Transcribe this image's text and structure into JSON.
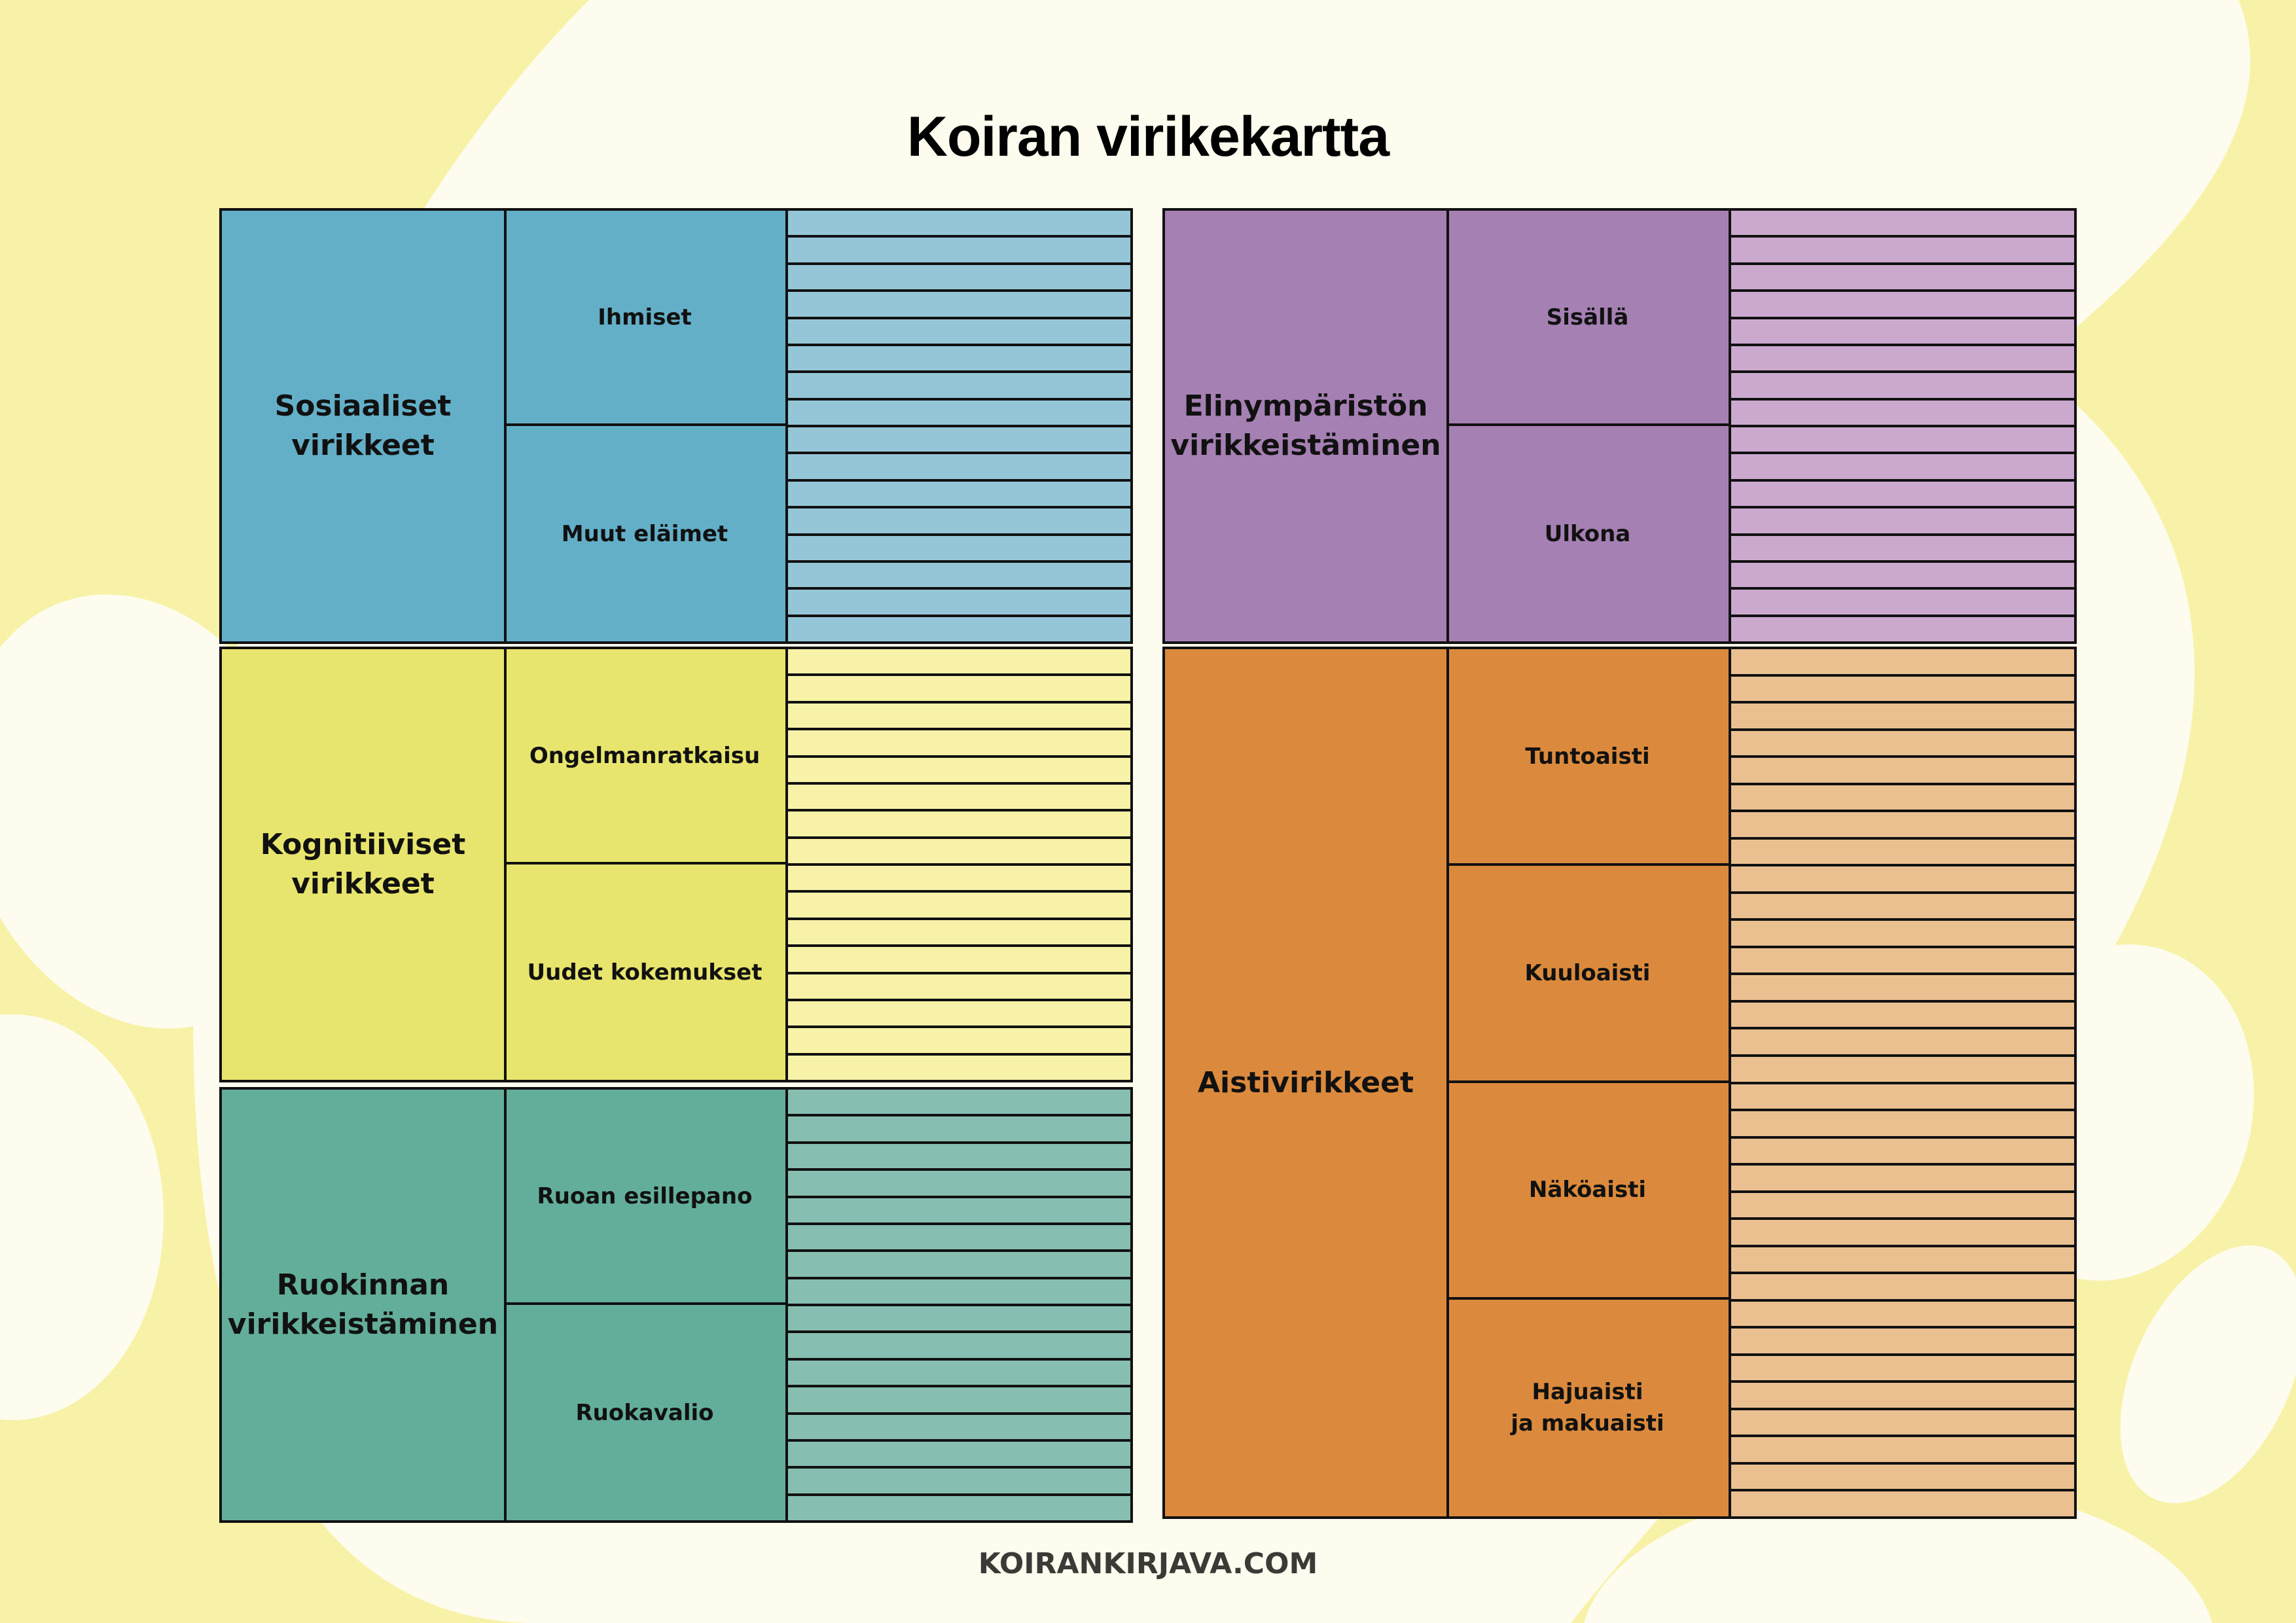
{
  "title": "Koiran virikekartta",
  "footer": "KOIRANKIRJAVA.COM",
  "colors": {
    "background_yellow": "#f8f2a8",
    "background_cream": "#fefcee",
    "outline": "#111111"
  },
  "categories": [
    {
      "label": "Sosiaaliset\nvirikkeet",
      "color": "#64afc8",
      "stripe_color": "#95c6d8",
      "subcategories": [
        "Ihmiset",
        "Muut eläimet"
      ],
      "rows": 16
    },
    {
      "label": "Kognitiiviset\nvirikkeet",
      "color": "#e8e56e",
      "stripe_color": "#f8f2a8",
      "subcategories": [
        "Ongelmanratkaisu",
        "Uudet kokemukset"
      ],
      "rows": 16
    },
    {
      "label": "Ruokinnan\nvirikkeistäminen",
      "color": "#63ae9a",
      "stripe_color": "#86bfb2",
      "subcategories": [
        "Ruoan esillepano",
        "Ruokavalio"
      ],
      "rows": 16
    },
    {
      "label": "Elinympäristön\nvirikkeistäminen",
      "color": "#a580b3",
      "stripe_color": "#cba9cf",
      "subcategories": [
        "Sisällä",
        "Ulkona"
      ],
      "rows": 16
    },
    {
      "label": "Aistivirikkeet",
      "color": "#db8a3d",
      "stripe_color": "#ebc091",
      "subcategories": [
        "Tuntoaisti",
        "Kuuloaisti",
        "Näköaisti",
        "Hajuaisti\nja makuaisti"
      ],
      "rows": 32
    }
  ]
}
